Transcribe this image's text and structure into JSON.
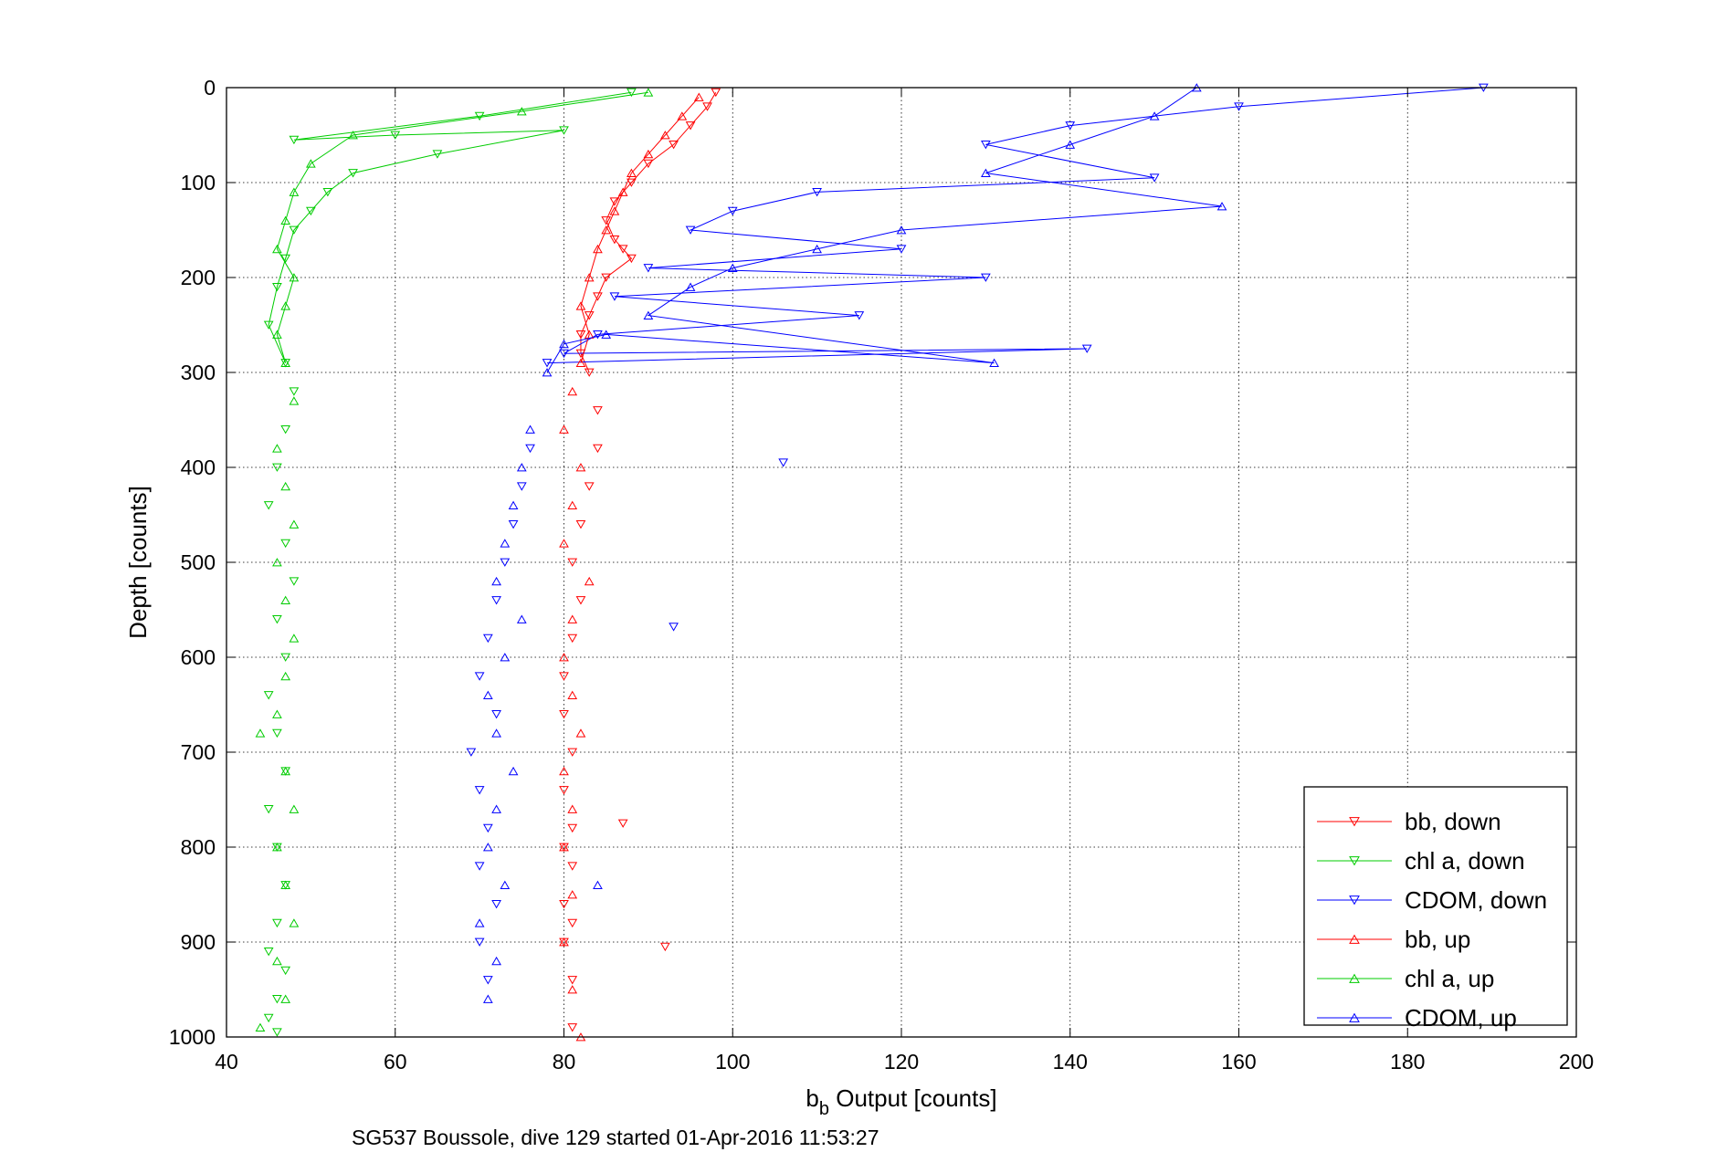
{
  "chart_data": {
    "type": "scatter",
    "xlabel_main": "b",
    "xlabel_sub": "b",
    "xlabel_rest": " Output [counts]",
    "ylabel": "Depth [counts]",
    "caption": "SG537 Boussole, dive 129 started 01-Apr-2016 11:53:27",
    "xlim": [
      40,
      200
    ],
    "ylim": [
      0,
      1000
    ],
    "y_reversed": true,
    "grid": true,
    "legend_position": "bottom-right",
    "x_ticks": [
      "40",
      "60",
      "80",
      "100",
      "120",
      "140",
      "160",
      "180",
      "200"
    ],
    "y_ticks": [
      "0",
      "100",
      "200",
      "300",
      "400",
      "500",
      "600",
      "700",
      "800",
      "900",
      "1000"
    ],
    "series": [
      {
        "name": "bb, down",
        "color": "#ff0000",
        "marker": "triangle-down",
        "x": [
          98,
          97,
          95,
          93,
          90,
          88,
          86,
          85,
          86,
          87,
          88,
          85,
          84,
          83,
          82,
          82,
          83,
          84,
          84,
          83,
          82,
          81,
          82,
          81,
          80,
          80,
          81,
          80,
          81,
          80,
          81,
          80,
          81,
          80,
          87,
          81,
          92,
          81
        ],
        "y": [
          5,
          20,
          40,
          60,
          80,
          100,
          120,
          140,
          160,
          170,
          180,
          200,
          220,
          240,
          260,
          280,
          300,
          340,
          380,
          420,
          460,
          500,
          540,
          580,
          620,
          660,
          700,
          740,
          780,
          800,
          820,
          860,
          880,
          900,
          775,
          940,
          905,
          990
        ]
      },
      {
        "name": "chl a, down",
        "color": "#00cc00",
        "marker": "triangle-down",
        "x": [
          88,
          70,
          48,
          60,
          80,
          65,
          55,
          52,
          50,
          48,
          47,
          46,
          45,
          47,
          48,
          47,
          46,
          45,
          47,
          48,
          46,
          47,
          45,
          46,
          47,
          45,
          46,
          47,
          46,
          45,
          47,
          46,
          45,
          46
        ],
        "y": [
          5,
          30,
          55,
          50,
          45,
          70,
          90,
          110,
          130,
          150,
          180,
          210,
          250,
          290,
          320,
          360,
          400,
          440,
          480,
          520,
          560,
          600,
          640,
          680,
          720,
          760,
          800,
          840,
          880,
          910,
          930,
          960,
          980,
          995
        ]
      },
      {
        "name": "CDOM, down",
        "color": "#0000ff",
        "marker": "triangle-down",
        "x": [
          189,
          160,
          140,
          130,
          150,
          110,
          100,
          95,
          120,
          90,
          130,
          86,
          115,
          84,
          80,
          142,
          78,
          76,
          75,
          74,
          73,
          72,
          93,
          71,
          70,
          72,
          69,
          70,
          71,
          70,
          72,
          70,
          71,
          106
        ],
        "y": [
          0,
          20,
          40,
          60,
          95,
          110,
          130,
          150,
          170,
          190,
          200,
          220,
          240,
          260,
          280,
          275,
          290,
          380,
          420,
          460,
          500,
          540,
          568,
          580,
          620,
          660,
          700,
          740,
          780,
          820,
          860,
          900,
          940,
          395
        ]
      },
      {
        "name": "bb, up",
        "color": "#ff0000",
        "marker": "triangle-up",
        "x": [
          96,
          94,
          92,
          90,
          88,
          87,
          86,
          85,
          84,
          83,
          82,
          83,
          82,
          81,
          80,
          82,
          81,
          80,
          83,
          81,
          80,
          81,
          82,
          80,
          81,
          80,
          81,
          80,
          81,
          82
        ],
        "y": [
          10,
          30,
          50,
          70,
          90,
          110,
          130,
          150,
          170,
          200,
          230,
          260,
          290,
          320,
          360,
          400,
          440,
          480,
          520,
          560,
          600,
          640,
          680,
          720,
          760,
          800,
          850,
          900,
          950,
          1000
        ]
      },
      {
        "name": "chl a, up",
        "color": "#00cc00",
        "marker": "triangle-up",
        "x": [
          90,
          75,
          55,
          50,
          48,
          47,
          46,
          48,
          47,
          46,
          47,
          48,
          46,
          47,
          48,
          46,
          47,
          48,
          47,
          46,
          44,
          47,
          48,
          46,
          47,
          48,
          46,
          47,
          44
        ],
        "y": [
          5,
          25,
          50,
          80,
          110,
          140,
          170,
          200,
          230,
          260,
          290,
          330,
          380,
          420,
          460,
          500,
          540,
          580,
          620,
          660,
          680,
          720,
          760,
          800,
          840,
          880,
          920,
          960,
          990
        ]
      },
      {
        "name": "CDOM, up",
        "color": "#0000ff",
        "marker": "triangle-up",
        "x": [
          155,
          150,
          140,
          130,
          158,
          120,
          110,
          100,
          95,
          90,
          131,
          85,
          80,
          78,
          76,
          75,
          74,
          73,
          72,
          75,
          73,
          71,
          72,
          74,
          72,
          71,
          73,
          70,
          72,
          71,
          84
        ],
        "y": [
          0,
          30,
          60,
          90,
          125,
          150,
          170,
          190,
          210,
          240,
          290,
          260,
          270,
          300,
          360,
          400,
          440,
          480,
          520,
          560,
          600,
          640,
          680,
          720,
          760,
          800,
          840,
          880,
          920,
          960,
          840
        ]
      }
    ]
  }
}
